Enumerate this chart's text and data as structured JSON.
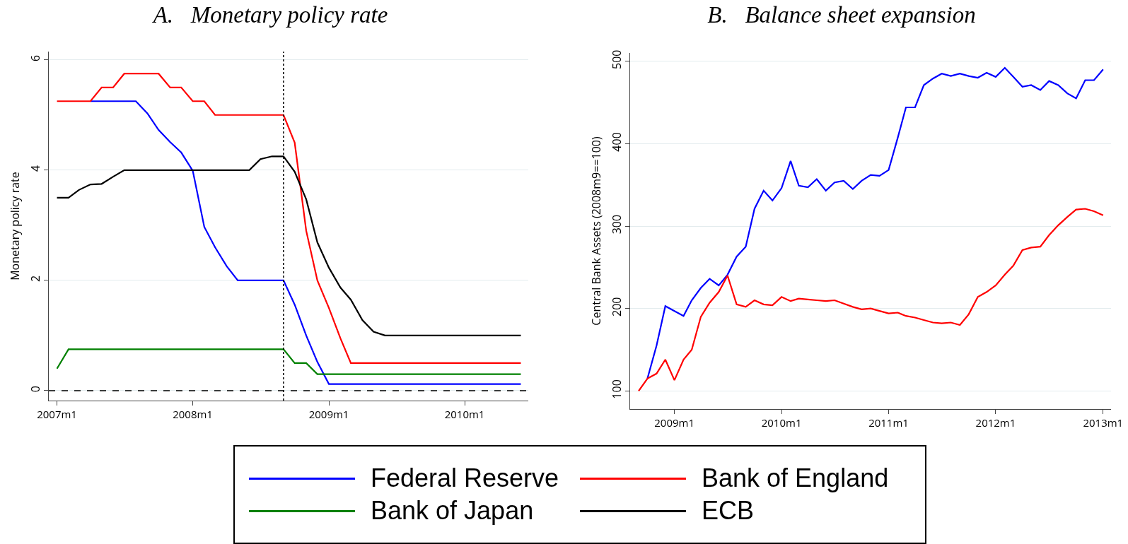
{
  "chart_data": [
    {
      "type": "line",
      "title": "A.   Monetary policy rate",
      "ylabel": "Monetary policy rate",
      "x": [
        "2007-01",
        "2007-02",
        "2007-03",
        "2007-04",
        "2007-05",
        "2007-06",
        "2007-07",
        "2007-08",
        "2007-09",
        "2007-10",
        "2007-11",
        "2007-12",
        "2008-01",
        "2008-02",
        "2008-03",
        "2008-04",
        "2008-05",
        "2008-06",
        "2008-07",
        "2008-08",
        "2008-09",
        "2008-10",
        "2008-11",
        "2008-12",
        "2009-01",
        "2009-02",
        "2009-03",
        "2009-04",
        "2009-05",
        "2009-06",
        "2009-07",
        "2009-08",
        "2009-09",
        "2009-10",
        "2009-11",
        "2009-12",
        "2010-01",
        "2010-02",
        "2010-03",
        "2010-04",
        "2010-05",
        "2010-06"
      ],
      "series": [
        {
          "name": "Federal Reserve",
          "color": "#0000ff",
          "values": [
            null,
            null,
            null,
            5.25,
            5.25,
            5.25,
            5.25,
            5.25,
            5.03,
            4.73,
            4.51,
            4.32,
            3.99,
            2.97,
            2.6,
            2.26,
            2.0,
            2.0,
            2.0,
            2.0,
            2.0,
            1.56,
            1.0,
            0.52,
            0.12,
            0.12,
            0.12,
            0.12,
            0.12,
            0.12,
            0.12,
            0.12,
            0.12,
            0.12,
            0.12,
            0.12,
            0.12,
            0.12,
            0.12,
            0.12,
            0.12,
            0.12
          ]
        },
        {
          "name": "Bank of England",
          "color": "#ff0000",
          "values": [
            5.25,
            5.25,
            5.25,
            5.25,
            5.5,
            5.5,
            5.75,
            5.75,
            5.75,
            5.75,
            5.5,
            5.5,
            5.25,
            5.25,
            5.0,
            5.0,
            5.0,
            5.0,
            5.0,
            5.0,
            5.0,
            4.5,
            2.9,
            2.0,
            1.5,
            0.95,
            0.5,
            0.5,
            0.5,
            0.5,
            0.5,
            0.5,
            0.5,
            0.5,
            0.5,
            0.5,
            0.5,
            0.5,
            0.5,
            0.5,
            0.5,
            0.5
          ]
        },
        {
          "name": "Bank of Japan",
          "color": "#008000",
          "values": [
            0.4,
            0.75,
            0.75,
            0.75,
            0.75,
            0.75,
            0.75,
            0.75,
            0.75,
            0.75,
            0.75,
            0.75,
            0.75,
            0.75,
            0.75,
            0.75,
            0.75,
            0.75,
            0.75,
            0.75,
            0.75,
            0.5,
            0.5,
            0.3,
            0.3,
            0.3,
            0.3,
            0.3,
            0.3,
            0.3,
            0.3,
            0.3,
            0.3,
            0.3,
            0.3,
            0.3,
            0.3,
            0.3,
            0.3,
            0.3,
            0.3,
            0.3
          ]
        },
        {
          "name": "ECB",
          "color": "#000000",
          "values": [
            3.5,
            3.5,
            3.64,
            3.74,
            3.75,
            3.88,
            4.0,
            4.0,
            4.0,
            4.0,
            4.0,
            4.0,
            4.0,
            4.0,
            4.0,
            4.0,
            4.0,
            4.0,
            4.2,
            4.25,
            4.25,
            3.97,
            3.47,
            2.69,
            2.23,
            1.87,
            1.65,
            1.28,
            1.07,
            1.0,
            1.0,
            1.0,
            1.0,
            1.0,
            1.0,
            1.0,
            1.0,
            1.0,
            1.0,
            1.0,
            1.0,
            1.0
          ]
        }
      ],
      "xlim": [
        "2006-12-10",
        "2010-06-21"
      ],
      "xticks": [
        {
          "value": "2007-01",
          "label": "2007m1"
        },
        {
          "value": "2008-01",
          "label": "2008m1"
        },
        {
          "value": "2009-01",
          "label": "2009m1"
        },
        {
          "value": "2010-01",
          "label": "2010m1"
        }
      ],
      "ylim": [
        -0.18,
        6.15
      ],
      "yticks": [
        0,
        2,
        4,
        6
      ],
      "grid": "y",
      "legend": "bottom",
      "ref_lines": [
        {
          "axis": "y",
          "value": 0,
          "color": "#000000",
          "line_style": "dashed"
        },
        {
          "axis": "x",
          "value": "2008-09",
          "color": "#000000",
          "line_style": "dotted"
        }
      ]
    },
    {
      "type": "line",
      "title": "B.   Balance sheet expansion",
      "ylabel": "Central Bank Assets (2008m9==100)",
      "x": [
        "2008-09",
        "2008-10",
        "2008-11",
        "2008-12",
        "2009-01",
        "2009-02",
        "2009-03",
        "2009-04",
        "2009-05",
        "2009-06",
        "2009-07",
        "2009-08",
        "2009-09",
        "2009-10",
        "2009-11",
        "2009-12",
        "2010-01",
        "2010-02",
        "2010-03",
        "2010-04",
        "2010-05",
        "2010-06",
        "2010-07",
        "2010-08",
        "2010-09",
        "2010-10",
        "2010-11",
        "2010-12",
        "2011-01",
        "2011-02",
        "2011-03",
        "2011-04",
        "2011-05",
        "2011-06",
        "2011-07",
        "2011-08",
        "2011-09",
        "2011-10",
        "2011-11",
        "2011-12",
        "2012-01",
        "2012-02",
        "2012-03",
        "2012-04",
        "2012-05",
        "2012-06",
        "2012-07",
        "2012-08",
        "2012-09",
        "2012-10",
        "2012-11",
        "2012-12",
        "2013-01"
      ],
      "series": [
        {
          "color": "#0000ff",
          "values": [
            null,
            115,
            155,
            203,
            197,
            191,
            210,
            225,
            236,
            228,
            241,
            263,
            275,
            321,
            343,
            331,
            346,
            379,
            349,
            347,
            357,
            343,
            353,
            355,
            345,
            355,
            362,
            361,
            368,
            407,
            444,
            444,
            471,
            479,
            485,
            482,
            485,
            482,
            480,
            486,
            481,
            492,
            481,
            469,
            471,
            465,
            476,
            471,
            461,
            455,
            477,
            477,
            490
          ]
        },
        {
          "color": "#ff0000",
          "values": [
            100,
            115,
            121,
            138,
            113,
            138,
            150,
            190,
            207,
            220,
            240,
            205,
            202,
            210,
            205,
            204,
            214,
            209,
            212,
            211,
            210,
            209,
            210,
            206,
            202,
            199,
            200,
            197,
            194,
            195,
            191,
            189,
            186,
            183,
            182,
            183,
            180,
            193,
            214,
            220,
            228,
            241,
            252,
            271,
            274,
            275,
            289,
            301,
            311,
            320,
            321,
            318,
            313
          ]
        }
      ],
      "xlim": [
        "2008-08-03",
        "2013-01-28"
      ],
      "xticks": [
        {
          "value": "2009-01",
          "label": "2009m1"
        },
        {
          "value": "2010-01",
          "label": "2010m1"
        },
        {
          "value": "2011-01",
          "label": "2011m1"
        },
        {
          "value": "2012-01",
          "label": "2012m1"
        },
        {
          "value": "2013-01",
          "label": "2013m1"
        }
      ],
      "ylim": [
        78,
        510
      ],
      "yticks": [
        100,
        200,
        300,
        400,
        500
      ],
      "grid": "y"
    }
  ]
}
